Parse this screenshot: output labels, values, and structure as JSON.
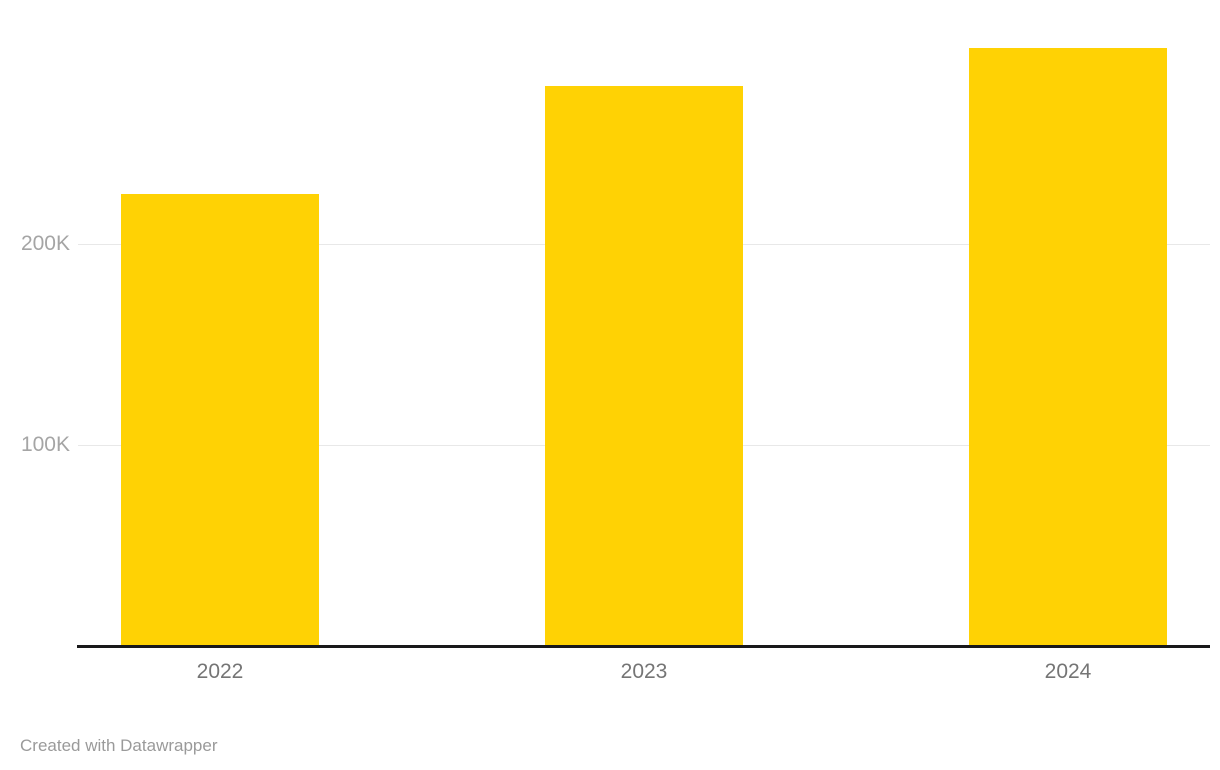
{
  "chart_data": {
    "type": "bar",
    "categories": [
      "2022",
      "2023",
      "2024"
    ],
    "values": [
      225000,
      279000,
      298000
    ],
    "title": "",
    "xlabel": "",
    "ylabel": "",
    "ylim": [
      0,
      300000
    ],
    "yticks": [
      100000,
      200000
    ],
    "ytick_labels": [
      "100K",
      "200K"
    ],
    "grid": true,
    "legend": false,
    "bar_color": "#ffd204"
  },
  "footer": {
    "credit": "Created with Datawrapper"
  },
  "colors": {
    "bar": "#ffd204",
    "gridline": "#e8e8e8",
    "axis_line": "#18181a",
    "ytick_label": "#a5a5a5",
    "xtick_label": "#757575",
    "footer_text": "#9a9a9a",
    "background": "#ffffff"
  }
}
